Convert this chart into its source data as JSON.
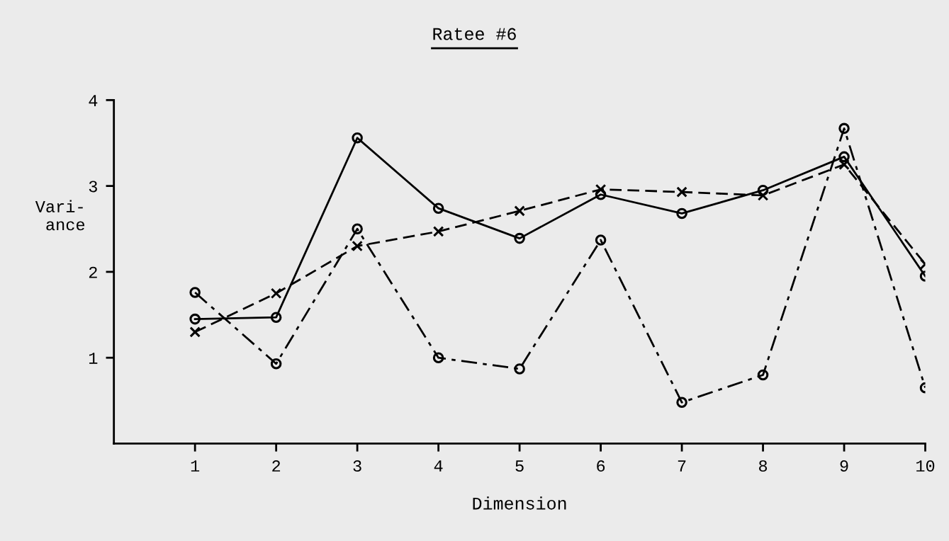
{
  "chart_data": {
    "type": "line",
    "title": "Ratee #6",
    "xlabel": "Dimension",
    "ylabel": "Vari-\nance",
    "x": [
      1,
      2,
      3,
      4,
      5,
      6,
      7,
      8,
      9,
      10
    ],
    "xlim": [
      0,
      10
    ],
    "xticks": [
      1,
      2,
      3,
      4,
      5,
      6,
      7,
      8,
      9,
      10
    ],
    "ylim": [
      0,
      4
    ],
    "yticks": [
      1,
      2,
      3,
      4
    ],
    "grid": false,
    "series": [
      {
        "color": "#000000",
        "line_style": "solid",
        "marker": "circle",
        "values": [
          1.45,
          1.47,
          3.56,
          2.74,
          2.39,
          2.9,
          2.68,
          2.95,
          3.34,
          1.95
        ]
      },
      {
        "color": "#000000",
        "line_style": "dashed",
        "marker": "cross",
        "values": [
          1.3,
          1.75,
          2.3,
          2.47,
          2.71,
          2.96,
          2.93,
          2.89,
          3.25,
          2.09
        ]
      },
      {
        "color": "#000000",
        "line_style": "dashdot",
        "marker": "circle",
        "values": [
          1.76,
          0.93,
          2.5,
          1.0,
          0.87,
          2.37,
          0.48,
          0.8,
          3.67,
          0.65
        ]
      }
    ]
  }
}
